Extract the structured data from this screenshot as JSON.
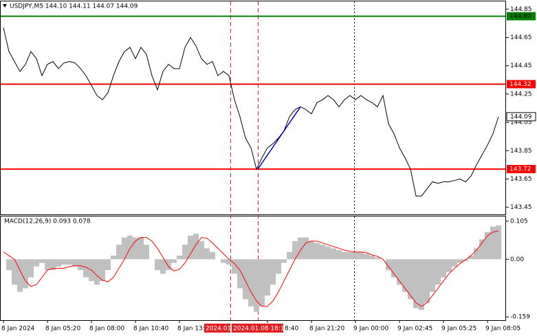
{
  "chart_data": [
    {
      "type": "line",
      "title": "USDJPY,M5  144.10 144.11 144.07 144.09",
      "color": "#000000",
      "categories": [
        "8 Jan 2024",
        null,
        null,
        null,
        null,
        null,
        null,
        null,
        "8 Jan 05:20",
        null,
        null,
        null,
        null,
        null,
        null,
        null,
        "8 Jan 08:00",
        null,
        null,
        null,
        null,
        null,
        null,
        null,
        "8 Jan 10:40",
        null,
        null,
        null,
        null,
        null,
        null,
        null,
        "8 Jan 13:",
        null,
        null,
        null,
        null,
        null,
        null,
        null,
        null,
        null,
        null,
        null,
        null,
        null,
        null,
        null,
        "8:40",
        null,
        null,
        null,
        null,
        null,
        null,
        null,
        "8 Jan 21:20",
        null,
        null,
        null,
        null,
        null,
        null,
        null,
        "9 Jan 00:00",
        null,
        null,
        null,
        null,
        null,
        null,
        null,
        "9 Jan 02:45",
        null,
        null,
        null,
        null,
        null,
        null,
        null,
        "9 Jan 05:25",
        null,
        null,
        null,
        null,
        null,
        null,
        null,
        "9 Jan 08:05",
        null,
        null
      ],
      "values": [
        144.72,
        144.55,
        144.48,
        144.41,
        144.46,
        144.55,
        144.5,
        144.38,
        144.46,
        144.48,
        144.43,
        144.47,
        144.48,
        144.47,
        144.43,
        144.38,
        144.31,
        144.24,
        144.21,
        144.26,
        144.38,
        144.48,
        144.55,
        144.58,
        144.5,
        144.58,
        144.53,
        144.38,
        144.28,
        144.41,
        144.46,
        144.43,
        144.43,
        144.58,
        144.65,
        144.59,
        144.5,
        144.46,
        144.48,
        144.38,
        144.41,
        144.38,
        144.21,
        144.09,
        143.94,
        143.87,
        143.72,
        143.8,
        143.87,
        143.9,
        143.94,
        143.99,
        144.09,
        144.14,
        144.16,
        144.14,
        144.11,
        144.19,
        144.21,
        144.24,
        144.21,
        144.16,
        144.21,
        144.24,
        144.21,
        144.24,
        144.21,
        144.19,
        144.16,
        144.24,
        144.04,
        143.97,
        143.87,
        143.8,
        143.72,
        143.53,
        143.53,
        143.58,
        143.63,
        143.62,
        143.63,
        143.63,
        143.64,
        143.65,
        143.63,
        143.67,
        143.75,
        143.82,
        143.89,
        143.97,
        144.09
      ],
      "ylim": [
        143.4,
        144.9
      ],
      "yticks": [
        144.85,
        144.65,
        144.45,
        144.25,
        144.05,
        143.85,
        143.65,
        143.45
      ],
      "levels": [
        {
          "value": 144.8,
          "label": "144.80",
          "color": "#008000"
        },
        {
          "value": 144.32,
          "label": "144.32",
          "color": "#ff0000"
        },
        {
          "value": 143.72,
          "label": "143.72",
          "color": "#ff0000"
        }
      ],
      "current_price": 144.09,
      "trendline": {
        "color": "#0000cc",
        "values": [
          143.72,
          144.16
        ]
      },
      "markers": [
        {
          "label": "2024.01."
        },
        {
          "label": "2024.01.08 18:10"
        }
      ],
      "grid": false
    },
    {
      "type": "macd",
      "title": "MACD(12,26,9) 0.093 0.078",
      "series": [
        {
          "type": "bar",
          "color": "#c0c0c0",
          "values": [
            0.0,
            -0.03,
            -0.07,
            -0.09,
            -0.08,
            -0.05,
            -0.02,
            -0.01,
            -0.03,
            -0.03,
            -0.02,
            -0.015,
            -0.015,
            -0.02,
            -0.03,
            -0.05,
            -0.06,
            -0.07,
            -0.06,
            -0.03,
            0.01,
            0.04,
            0.06,
            0.065,
            0.06,
            0.06,
            0.04,
            0.0,
            -0.03,
            -0.04,
            -0.03,
            -0.01,
            0.01,
            0.04,
            0.065,
            0.07,
            0.05,
            0.03,
            0.02,
            0.0,
            -0.01,
            -0.015,
            -0.04,
            -0.08,
            -0.11,
            -0.13,
            -0.145,
            -0.13,
            -0.1,
            -0.07,
            -0.04,
            -0.01,
            0.02,
            0.05,
            0.06,
            0.06,
            0.05,
            0.045,
            0.04,
            0.035,
            0.03,
            0.025,
            0.02,
            0.02,
            0.02,
            0.02,
            0.015,
            0.01,
            0.005,
            0.0,
            -0.03,
            -0.05,
            -0.07,
            -0.09,
            -0.11,
            -0.135,
            -0.14,
            -0.12,
            -0.09,
            -0.07,
            -0.05,
            -0.035,
            -0.02,
            -0.01,
            -0.005,
            0.01,
            0.03,
            0.055,
            0.075,
            0.09,
            0.093
          ]
        },
        {
          "type": "line",
          "color": "#ff0000",
          "values": [
            0.02,
            0.01,
            0.0,
            -0.03,
            -0.06,
            -0.075,
            -0.07,
            -0.05,
            -0.03,
            -0.025,
            -0.025,
            -0.025,
            -0.02,
            -0.018,
            -0.018,
            -0.022,
            -0.03,
            -0.045,
            -0.058,
            -0.062,
            -0.05,
            -0.025,
            0.0,
            0.03,
            0.05,
            0.06,
            0.06,
            0.05,
            0.03,
            0.005,
            -0.02,
            -0.032,
            -0.028,
            -0.01,
            0.015,
            0.04,
            0.06,
            0.058,
            0.045,
            0.03,
            0.015,
            0.0,
            -0.012,
            -0.03,
            -0.06,
            -0.09,
            -0.115,
            -0.13,
            -0.13,
            -0.115,
            -0.09,
            -0.06,
            -0.03,
            0.0,
            0.025,
            0.045,
            0.05,
            0.05,
            0.045,
            0.04,
            0.035,
            0.03,
            0.025,
            0.022,
            0.02,
            0.02,
            0.018,
            0.012,
            0.008,
            0.0,
            -0.02,
            -0.04,
            -0.06,
            -0.08,
            -0.1,
            -0.12,
            -0.13,
            -0.12,
            -0.1,
            -0.08,
            -0.06,
            -0.04,
            -0.025,
            -0.012,
            -0.002,
            0.01,
            0.025,
            0.045,
            0.065,
            0.075,
            0.078
          ]
        }
      ],
      "ylim": [
        -0.168,
        0.118
      ],
      "yticks": [
        0.105,
        {
          "value": 0,
          "label": "0.00"
        },
        -0.159
      ]
    }
  ]
}
